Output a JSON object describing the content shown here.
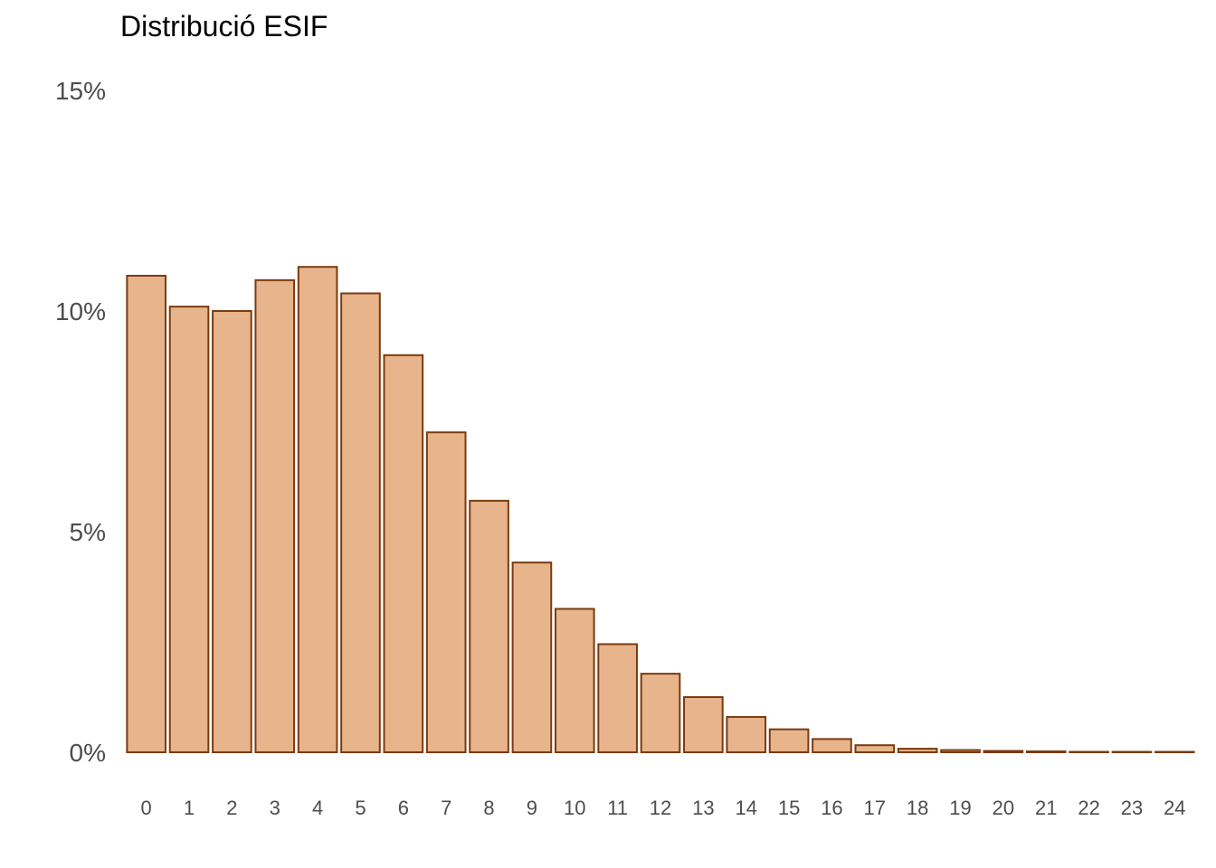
{
  "chart_data": {
    "type": "bar",
    "title": "Distribució ESIF",
    "xlabel": "",
    "ylabel": "",
    "categories": [
      "0",
      "1",
      "2",
      "3",
      "4",
      "5",
      "6",
      "7",
      "8",
      "9",
      "10",
      "11",
      "12",
      "13",
      "14",
      "15",
      "16",
      "17",
      "18",
      "19",
      "20",
      "21",
      "22",
      "23",
      "24"
    ],
    "values": [
      10.8,
      10.1,
      10.0,
      10.7,
      11.0,
      10.4,
      9.0,
      7.25,
      5.7,
      4.3,
      3.25,
      2.45,
      1.78,
      1.25,
      0.8,
      0.52,
      0.3,
      0.16,
      0.08,
      0.05,
      0.03,
      0.02,
      0.01,
      0.01,
      0.01
    ],
    "ylim": [
      0,
      15
    ],
    "yticks": [
      0,
      5,
      10,
      15
    ],
    "ytick_labels": [
      "0%",
      "5%",
      "10%",
      "15%"
    ],
    "grid": false,
    "bar_fill": "#e8b48b",
    "bar_stroke": "#7a3b10"
  }
}
